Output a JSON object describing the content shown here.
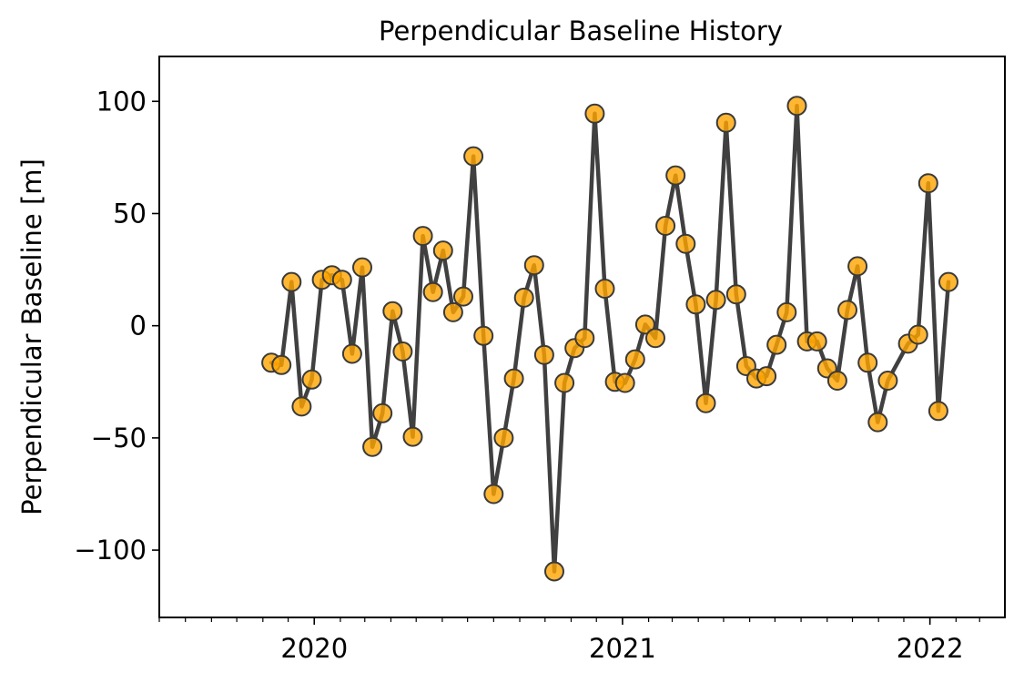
{
  "chart_data": {
    "type": "line",
    "title": "Perpendicular Baseline History",
    "xlabel": "",
    "ylabel": "Perpendicular Baseline [m]",
    "x_axis_type": "date",
    "xlim": [
      "2019-07-01",
      "2022-03-31"
    ],
    "ylim": [
      -130,
      120
    ],
    "yticks": [
      -100,
      -50,
      0,
      50,
      100
    ],
    "ytick_labels": [
      "−100",
      "−50",
      "0",
      "50",
      "100"
    ],
    "xticks": [
      {
        "date": "2020-01-01",
        "label": "2020"
      },
      {
        "date": "2021-01-01",
        "label": "2021"
      },
      {
        "date": "2022-01-01",
        "label": "2022"
      }
    ],
    "grid": false,
    "legend": "none",
    "colors": {
      "line": "#404040",
      "marker_fill": "#FFA500",
      "marker_edge": "#3a3a3a"
    },
    "series": [
      {
        "points": [
          {
            "x": "2019-11-11",
            "y": -16.5
          },
          {
            "x": "2019-11-23",
            "y": -17.5
          },
          {
            "x": "2019-12-05",
            "y": 19.5
          },
          {
            "x": "2019-12-17",
            "y": -36
          },
          {
            "x": "2019-12-29",
            "y": -24
          },
          {
            "x": "2020-01-10",
            "y": 20.5
          },
          {
            "x": "2020-01-22",
            "y": 22.5
          },
          {
            "x": "2020-02-03",
            "y": 20.5
          },
          {
            "x": "2020-02-15",
            "y": -12.5
          },
          {
            "x": "2020-02-27",
            "y": 26
          },
          {
            "x": "2020-03-10",
            "y": -54
          },
          {
            "x": "2020-03-22",
            "y": -39
          },
          {
            "x": "2020-04-03",
            "y": 6.5
          },
          {
            "x": "2020-04-15",
            "y": -11.5
          },
          {
            "x": "2020-04-27",
            "y": -49.5
          },
          {
            "x": "2020-05-09",
            "y": 40
          },
          {
            "x": "2020-05-21",
            "y": 15
          },
          {
            "x": "2020-06-02",
            "y": 33.5
          },
          {
            "x": "2020-06-14",
            "y": 6
          },
          {
            "x": "2020-06-26",
            "y": 13
          },
          {
            "x": "2020-07-08",
            "y": 75.5
          },
          {
            "x": "2020-07-20",
            "y": -4.5
          },
          {
            "x": "2020-08-01",
            "y": -75
          },
          {
            "x": "2020-08-13",
            "y": -50
          },
          {
            "x": "2020-08-25",
            "y": -23.5
          },
          {
            "x": "2020-09-06",
            "y": 12.5
          },
          {
            "x": "2020-09-18",
            "y": 27
          },
          {
            "x": "2020-09-30",
            "y": -13
          },
          {
            "x": "2020-10-12",
            "y": -109.5
          },
          {
            "x": "2020-10-24",
            "y": -25.5
          },
          {
            "x": "2020-11-05",
            "y": -10
          },
          {
            "x": "2020-11-17",
            "y": -5.5
          },
          {
            "x": "2020-11-29",
            "y": 94.5
          },
          {
            "x": "2020-12-11",
            "y": 16.5
          },
          {
            "x": "2020-12-23",
            "y": -25
          },
          {
            "x": "2021-01-04",
            "y": -25.5
          },
          {
            "x": "2021-01-16",
            "y": -15
          },
          {
            "x": "2021-01-28",
            "y": 0.5
          },
          {
            "x": "2021-02-09",
            "y": -5.5
          },
          {
            "x": "2021-02-21",
            "y": 44.5
          },
          {
            "x": "2021-03-05",
            "y": 67
          },
          {
            "x": "2021-03-17",
            "y": 36.5
          },
          {
            "x": "2021-03-29",
            "y": 9.5
          },
          {
            "x": "2021-04-10",
            "y": -34.5
          },
          {
            "x": "2021-04-22",
            "y": 11.5
          },
          {
            "x": "2021-05-04",
            "y": 90.5
          },
          {
            "x": "2021-05-16",
            "y": 14
          },
          {
            "x": "2021-05-28",
            "y": -18
          },
          {
            "x": "2021-06-09",
            "y": -23.5
          },
          {
            "x": "2021-06-21",
            "y": -22.5
          },
          {
            "x": "2021-07-03",
            "y": -8.5
          },
          {
            "x": "2021-07-15",
            "y": 6
          },
          {
            "x": "2021-07-27",
            "y": 98
          },
          {
            "x": "2021-08-08",
            "y": -7
          },
          {
            "x": "2021-08-20",
            "y": -7
          },
          {
            "x": "2021-09-01",
            "y": -19
          },
          {
            "x": "2021-09-13",
            "y": -24.5
          },
          {
            "x": "2021-09-25",
            "y": 7
          },
          {
            "x": "2021-10-07",
            "y": 26.5
          },
          {
            "x": "2021-10-19",
            "y": -16.5
          },
          {
            "x": "2021-10-31",
            "y": -43
          },
          {
            "x": "2021-11-12",
            "y": -24.5
          },
          {
            "x": "2021-12-06",
            "y": -8
          },
          {
            "x": "2021-12-18",
            "y": -4
          },
          {
            "x": "2021-12-30",
            "y": 63.5
          },
          {
            "x": "2022-01-11",
            "y": -38
          },
          {
            "x": "2022-01-23",
            "y": 19.5
          }
        ]
      }
    ]
  }
}
